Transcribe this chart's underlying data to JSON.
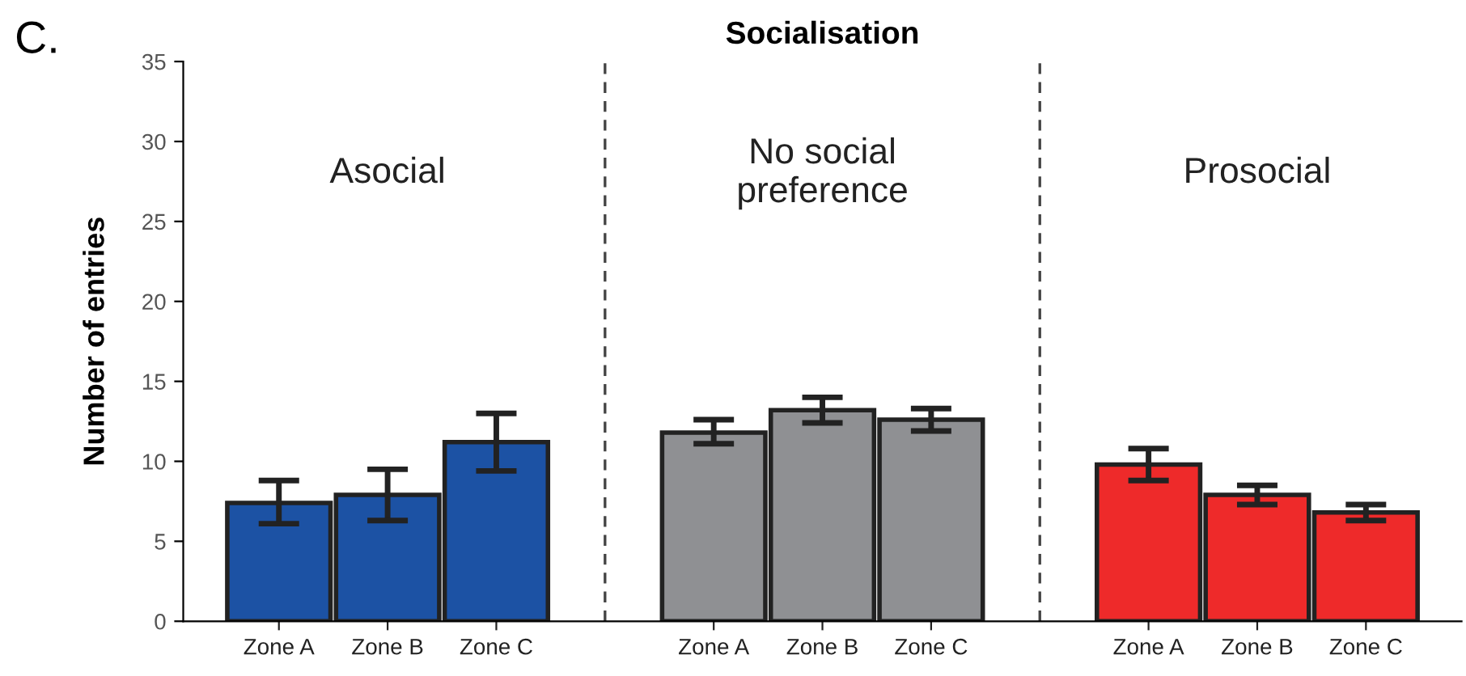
{
  "chart_data": {
    "type": "bar",
    "title": "Socialisation",
    "ylabel": "Number of entries",
    "categories": [
      "Zone A",
      "Zone B",
      "Zone C",
      null,
      "Zone A",
      "Zone B",
      "Zone C",
      null,
      "Zone A",
      "Zone B",
      "Zone C"
    ],
    "values": [
      7.4,
      7.9,
      11.2,
      null,
      11.8,
      13.2,
      12.6,
      null,
      9.8,
      7.9,
      6.8
    ],
    "errors": [
      [
        6.1,
        8.8
      ],
      [
        6.3,
        9.5
      ],
      [
        9.4,
        13.0
      ],
      null,
      [
        11.1,
        12.6
      ],
      [
        12.4,
        14.0
      ],
      [
        11.9,
        13.3
      ],
      null,
      [
        8.8,
        10.8
      ],
      [
        7.3,
        8.5
      ],
      [
        6.3,
        7.3
      ]
    ],
    "colors": [
      "#1c52a4",
      "#1c52a4",
      "#1c52a4",
      null,
      "#8f9093",
      "#8f9093",
      "#8f9093",
      null,
      "#ee2a2a",
      "#ee2a2a",
      "#ee2a2a"
    ],
    "ylim": [
      0,
      35
    ],
    "yticks": [
      0,
      5,
      10,
      15,
      20,
      25,
      30,
      35
    ],
    "annotations": [
      "C.",
      "Asocial",
      "No social\npreference",
      "Prosocial"
    ]
  }
}
